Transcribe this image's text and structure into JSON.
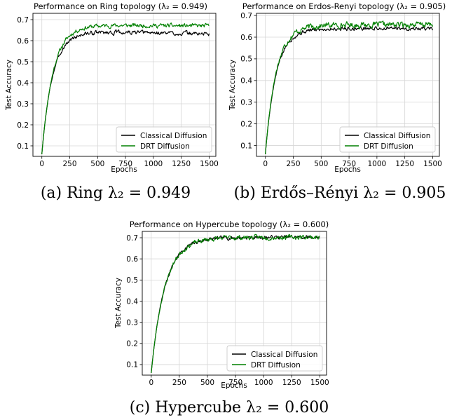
{
  "chart_data": [
    {
      "type": "line",
      "title": "Performance on Ring topology (λ₂ = 0.949)",
      "xlabel": "Epochs",
      "ylabel": "Test Accuracy",
      "xlim": [
        -80,
        1560
      ],
      "ylim": [
        0.05,
        0.73
      ],
      "xticks": [
        0,
        250,
        500,
        750,
        1000,
        1250,
        1500
      ],
      "yticks": [
        0.1,
        0.2,
        0.3,
        0.4,
        0.5,
        0.6,
        0.7
      ],
      "grid": true,
      "legend_position": "bottom-right",
      "caption": "(a) Ring λ₂ = 0.949",
      "series": [
        {
          "name": "Classical Diffusion",
          "color": "#000000",
          "start": 0.06,
          "plateau": 0.645,
          "rate": 95,
          "noise": 0.008,
          "drift": -0.012,
          "seed": 3
        },
        {
          "name": "DRT Diffusion",
          "color": "#008000",
          "start": 0.06,
          "plateau": 0.675,
          "rate": 100,
          "noise": 0.008,
          "drift": -0.005,
          "seed": 11
        }
      ]
    },
    {
      "type": "line",
      "title": "Performance on Erdos-Renyi topology (λ₂ = 0.905)",
      "xlabel": "Epochs",
      "ylabel": "Test Accuracy",
      "xlim": [
        -80,
        1560
      ],
      "ylim": [
        0.05,
        0.71
      ],
      "xticks": [
        0,
        250,
        500,
        750,
        1000,
        1250,
        1500
      ],
      "yticks": [
        0.1,
        0.2,
        0.3,
        0.4,
        0.5,
        0.6,
        0.7
      ],
      "grid": true,
      "legend_position": "bottom-right",
      "caption": "(b) Erdős–Rényi λ₂ = 0.905",
      "series": [
        {
          "name": "Classical Diffusion",
          "color": "#000000",
          "start": 0.06,
          "plateau": 0.64,
          "rate": 95,
          "noise": 0.007,
          "drift": 0.0,
          "seed": 5
        },
        {
          "name": "DRT Diffusion",
          "color": "#008000",
          "start": 0.06,
          "plateau": 0.655,
          "rate": 95,
          "noise": 0.011,
          "drift": 0.003,
          "seed": 17
        }
      ]
    },
    {
      "type": "line",
      "title": "Performance on Hypercube topology (λ₂ = 0.600)",
      "xlabel": "Epochs",
      "ylabel": "Test Accuracy",
      "xlim": [
        -80,
        1560
      ],
      "ylim": [
        0.05,
        0.73
      ],
      "xticks": [
        0,
        250,
        500,
        750,
        1000,
        1250,
        1500
      ],
      "yticks": [
        0.1,
        0.2,
        0.3,
        0.4,
        0.5,
        0.6,
        0.7
      ],
      "grid": true,
      "legend_position": "bottom-right",
      "caption": "(c) Hypercube λ₂ = 0.600",
      "series": [
        {
          "name": "Classical Diffusion",
          "color": "#000000",
          "start": 0.06,
          "plateau": 0.7,
          "rate": 120,
          "noise": 0.007,
          "drift": 0.003,
          "seed": 7
        },
        {
          "name": "DRT Diffusion",
          "color": "#008000",
          "start": 0.06,
          "plateau": 0.7,
          "rate": 120,
          "noise": 0.009,
          "drift": 0.003,
          "seed": 23
        }
      ]
    }
  ]
}
